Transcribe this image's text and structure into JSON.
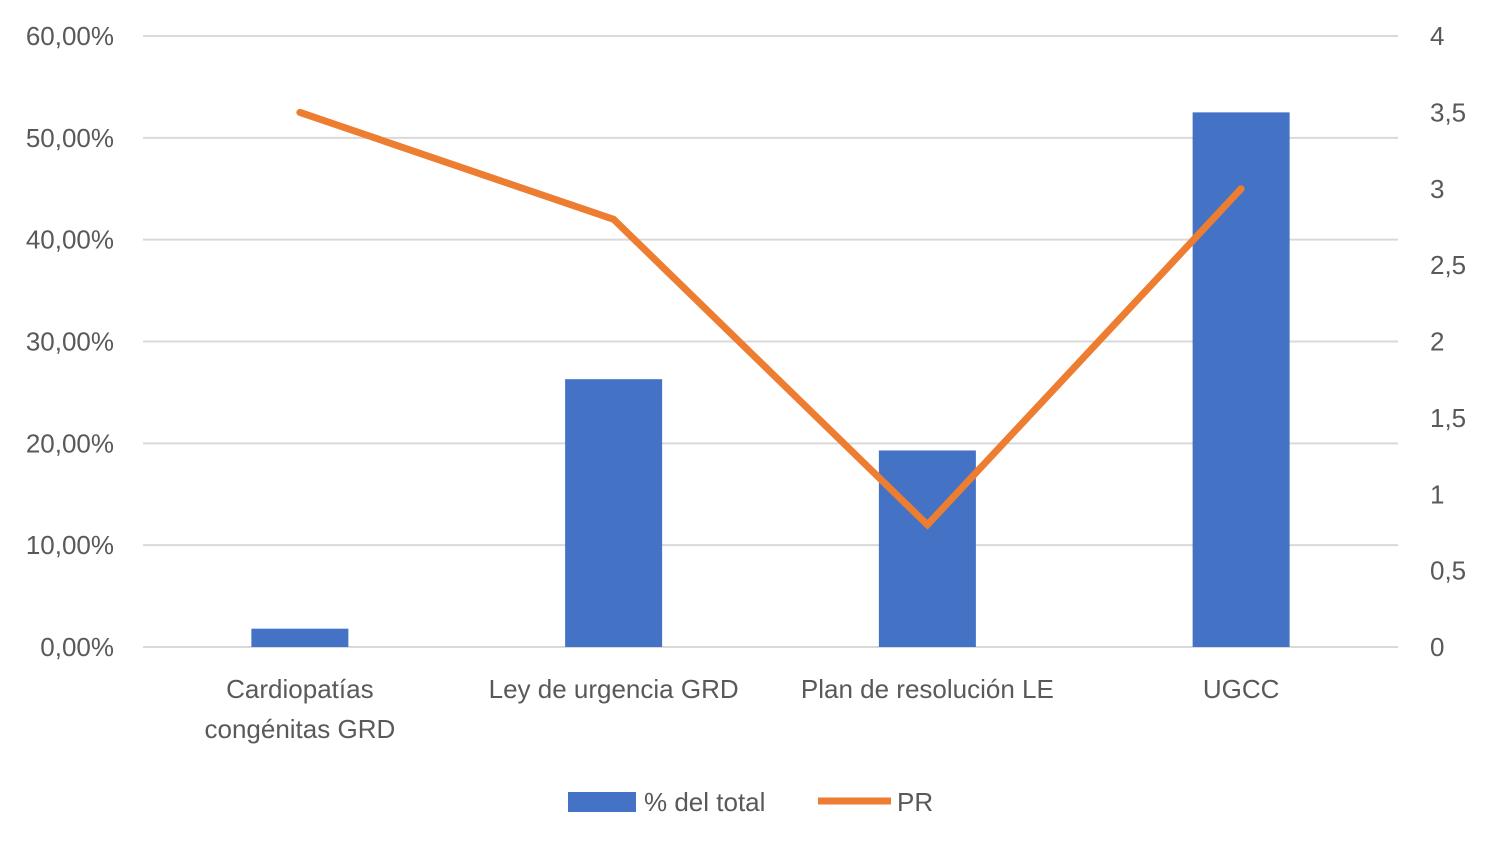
{
  "chart_data": {
    "type": "bar",
    "categories": [
      [
        "Cardiopatías",
        "congénitas GRD"
      ],
      [
        "Ley de urgencia GRD"
      ],
      [
        "Plan de resolución LE"
      ],
      [
        "UGCC"
      ]
    ],
    "series": [
      {
        "name": "% del total",
        "type": "bar",
        "axis": "left",
        "color": "#4472c4",
        "values": [
          1.8,
          26.3,
          19.3,
          52.5
        ]
      },
      {
        "name": "PR",
        "type": "line",
        "axis": "right",
        "color": "#ed7d31",
        "values": [
          3.5,
          2.8,
          0.8,
          3.0
        ]
      }
    ],
    "y_left": {
      "range": [
        0,
        60
      ],
      "ticks": [
        "0,00%",
        "10,00%",
        "20,00%",
        "30,00%",
        "40,00%",
        "50,00%",
        "60,00%"
      ]
    },
    "y_right": {
      "range": [
        0,
        4
      ],
      "ticks": [
        "0",
        "0,5",
        "1",
        "1,5",
        "2",
        "2,5",
        "3",
        "3,5",
        "4"
      ]
    },
    "grid": true,
    "legend": "bottom"
  }
}
